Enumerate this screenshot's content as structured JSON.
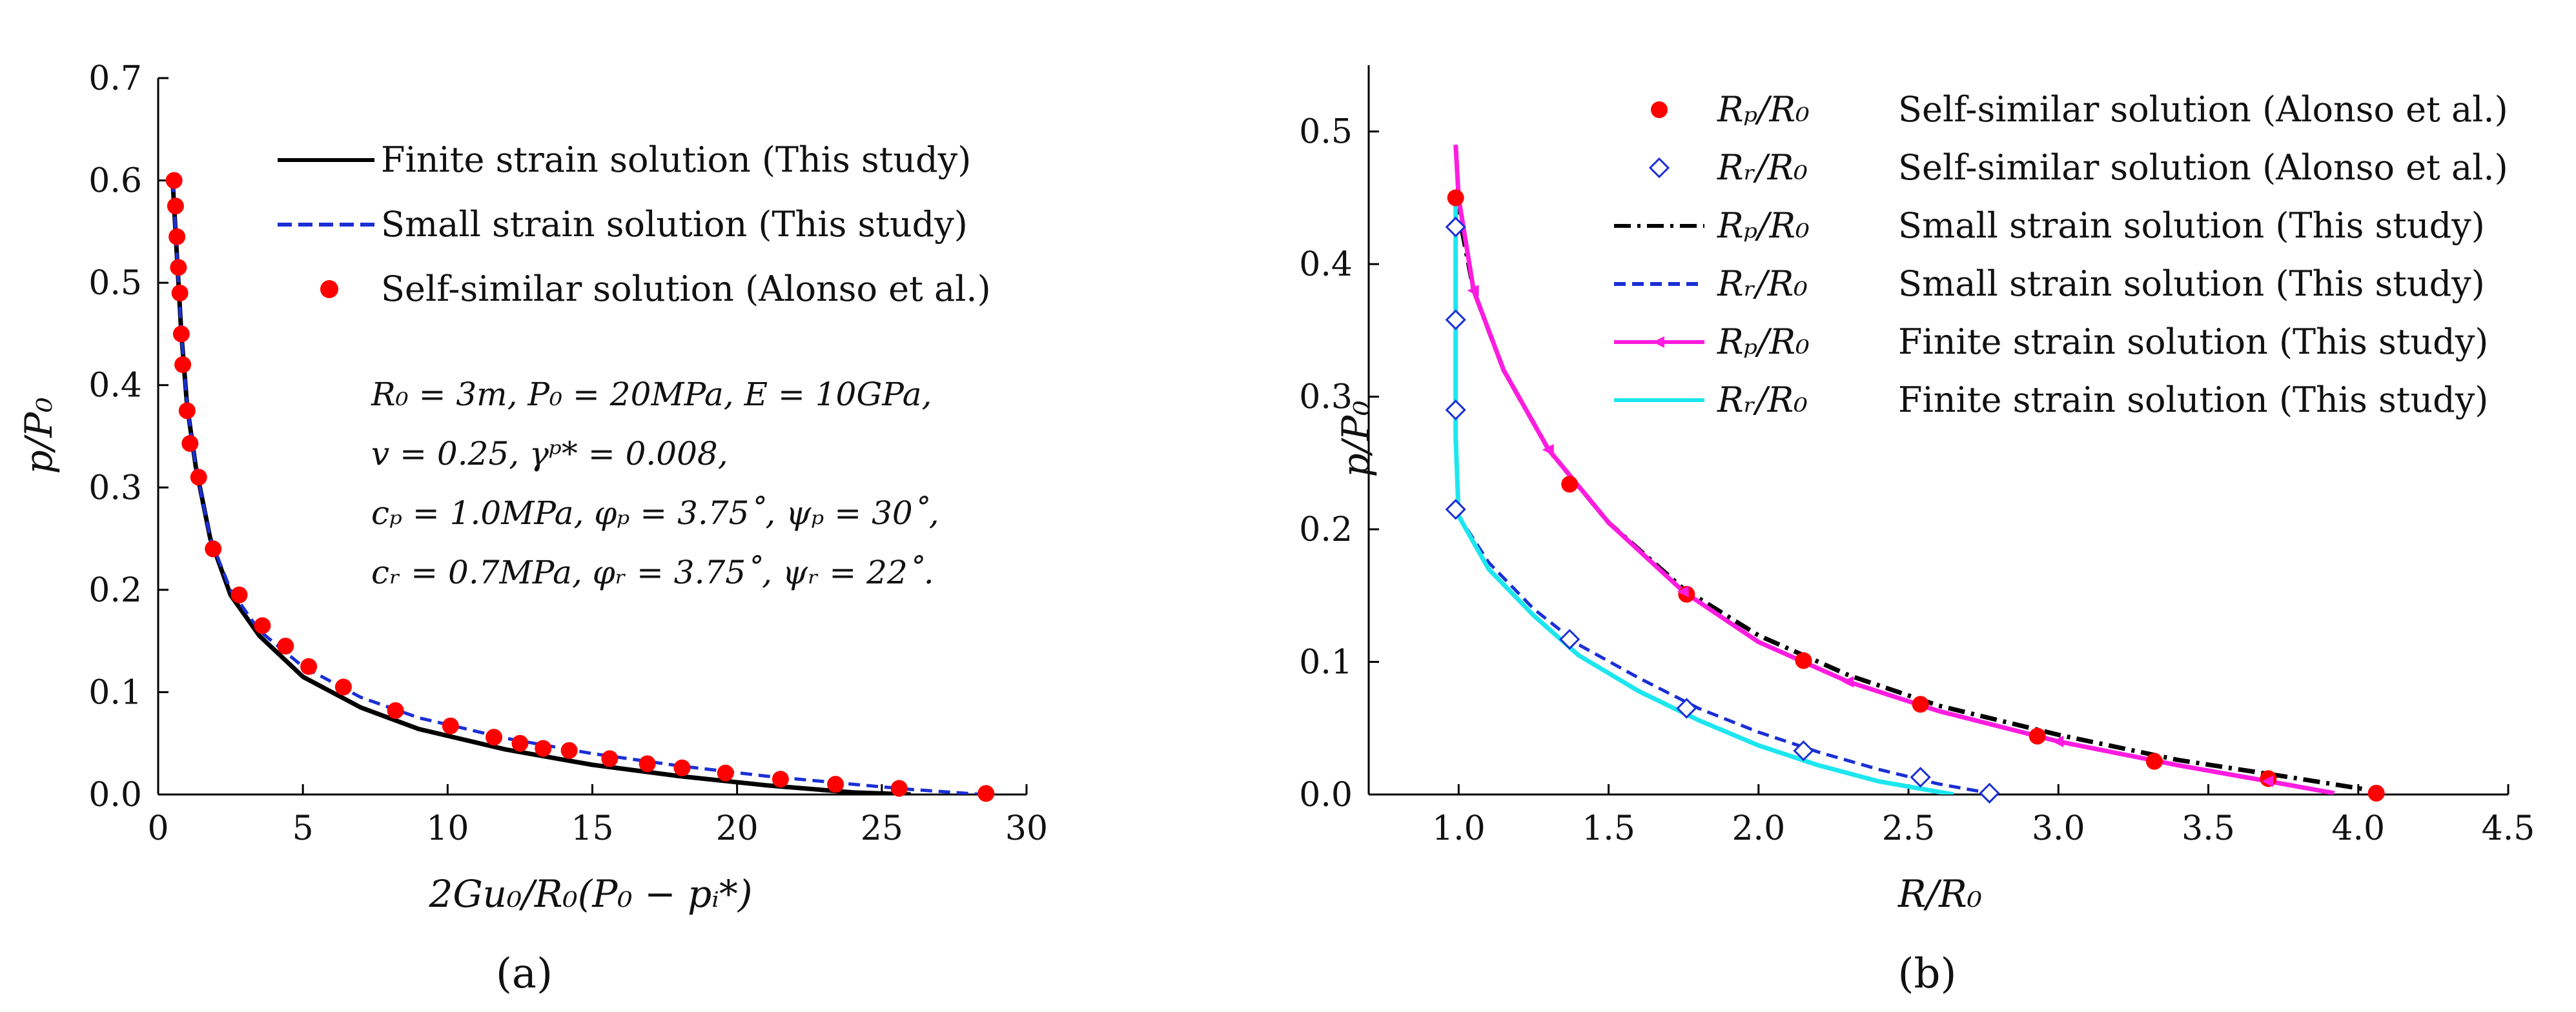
{
  "chart_data": [
    {
      "type": "line",
      "panel": "(a)",
      "xlabel": "2Gu₀/R₀(P₀ − pᵢ*)",
      "ylabel": "p/P₀",
      "xlim": [
        0,
        30
      ],
      "ylim": [
        0,
        0.7
      ],
      "xticks": [
        0,
        5,
        10,
        15,
        20,
        25,
        30
      ],
      "yticks": [
        0.0,
        0.1,
        0.2,
        0.3,
        0.4,
        0.5,
        0.6,
        0.7
      ],
      "xtick_labels": [
        "0",
        "5",
        "10",
        "15",
        "20",
        "25",
        "30"
      ],
      "ytick_labels": [
        "0.0",
        "0.1",
        "0.2",
        "0.3",
        "0.4",
        "0.5",
        "0.6",
        "0.7"
      ],
      "legend_position": "top-right",
      "series": [
        {
          "name": "Finite strain solution (This study)",
          "style": "solid",
          "color": "#000000",
          "x": [
            0.5,
            0.6,
            0.7,
            0.8,
            1.0,
            1.3,
            1.8,
            2.5,
            3.5,
            5,
            7,
            9,
            12,
            15,
            18,
            21,
            24,
            26
          ],
          "y": [
            0.6,
            0.55,
            0.5,
            0.45,
            0.38,
            0.32,
            0.25,
            0.195,
            0.155,
            0.115,
            0.085,
            0.064,
            0.044,
            0.029,
            0.018,
            0.009,
            0.002,
            0.0
          ]
        },
        {
          "name": "Small strain solution (This study)",
          "style": "dashed",
          "color": "#1a2fd6",
          "x": [
            0.5,
            0.6,
            0.7,
            0.8,
            1.0,
            1.3,
            1.8,
            2.5,
            3.5,
            5,
            7,
            9,
            12,
            15,
            18,
            21,
            24,
            26,
            28.5
          ],
          "y": [
            0.6,
            0.55,
            0.5,
            0.45,
            0.38,
            0.32,
            0.25,
            0.2,
            0.16,
            0.125,
            0.095,
            0.075,
            0.055,
            0.04,
            0.028,
            0.018,
            0.01,
            0.005,
            0.0
          ]
        },
        {
          "name": "Self-similar solution (Alonso et al.)",
          "style": "marker",
          "color": "#ff0000",
          "x": [
            0.55,
            0.6,
            0.65,
            0.7,
            0.75,
            0.8,
            0.85,
            1.0,
            1.1,
            1.4,
            1.9,
            2.8,
            3.6,
            4.4,
            5.2,
            6.4,
            8.2,
            10.1,
            11.6,
            12.5,
            13.3,
            14.2,
            15.6,
            16.9,
            18.1,
            19.6,
            21.5,
            23.4,
            25.6,
            28.6
          ],
          "y": [
            0.6,
            0.575,
            0.545,
            0.515,
            0.49,
            0.45,
            0.42,
            0.375,
            0.343,
            0.31,
            0.24,
            0.195,
            0.165,
            0.145,
            0.125,
            0.105,
            0.082,
            0.067,
            0.056,
            0.05,
            0.045,
            0.043,
            0.035,
            0.03,
            0.026,
            0.021,
            0.015,
            0.01,
            0.006,
            0.001
          ]
        }
      ],
      "annotation_lines": [
        "R₀ = 3m, P₀ = 20MPa, E = 10GPa,",
        "v = 0.25, γᵖ* = 0.008,",
        "cₚ = 1.0MPa, φₚ = 3.75˚, ψₚ = 30˚,",
        "cᵣ = 0.7MPa, φᵣ = 3.75˚, ψᵣ = 22˚."
      ]
    },
    {
      "type": "line",
      "panel": "(b)",
      "xlabel": "R/R₀",
      "ylabel": "p/P₀",
      "xlim": [
        0.7,
        4.5
      ],
      "ylim": [
        0,
        0.55
      ],
      "xticks": [
        1.0,
        1.5,
        2.0,
        2.5,
        3.0,
        3.5,
        4.0,
        4.5
      ],
      "yticks": [
        0.0,
        0.1,
        0.2,
        0.3,
        0.4,
        0.5
      ],
      "xtick_labels": [
        "1.0",
        "1.5",
        "2.0",
        "2.5",
        "3.0",
        "3.5",
        "4.0",
        "4.5"
      ],
      "ytick_labels": [
        "0.0",
        "0.1",
        "0.2",
        "0.3",
        "0.4",
        "0.5"
      ],
      "legend_position": "top-right",
      "series": [
        {
          "name": "Self-similar solution (Alonso et al.)",
          "symbol": "Rₚ/R₀",
          "style": "marker-circle",
          "color": "#ff0000",
          "x": [
            0.99,
            1.37,
            1.76,
            2.15,
            2.54,
            2.93,
            3.32,
            3.7,
            4.06
          ],
          "y": [
            0.45,
            0.234,
            0.151,
            0.101,
            0.068,
            0.044,
            0.025,
            0.012,
            0.001
          ]
        },
        {
          "name": "Self-similar solution (Alonso et al.)",
          "symbol": "Rᵣ/R₀",
          "style": "marker-diamond",
          "color": "#1a2fd6",
          "x": [
            0.99,
            0.99,
            0.99,
            0.99,
            1.37,
            1.76,
            2.15,
            2.54,
            2.77
          ],
          "y": [
            0.428,
            0.358,
            0.29,
            0.215,
            0.117,
            0.065,
            0.033,
            0.013,
            0.001
          ]
        },
        {
          "name": "Small strain solution (This study)",
          "symbol": "Rₚ/R₀",
          "style": "dash-dot",
          "color": "#000000",
          "x": [
            0.99,
            1.05,
            1.15,
            1.3,
            1.5,
            1.75,
            2.0,
            2.3,
            2.6,
            3.0,
            3.4,
            3.8,
            4.02
          ],
          "y": [
            0.45,
            0.38,
            0.32,
            0.26,
            0.205,
            0.155,
            0.12,
            0.09,
            0.067,
            0.045,
            0.026,
            0.012,
            0.004
          ]
        },
        {
          "name": "Small strain solution (This study)",
          "symbol": "Rᵣ/R₀",
          "style": "dashed",
          "color": "#1a2fd6",
          "x": [
            0.99,
            0.99,
            0.99,
            1.0,
            1.1,
            1.25,
            1.4,
            1.6,
            1.8,
            2.0,
            2.2,
            2.4,
            2.6,
            2.77
          ],
          "y": [
            0.43,
            0.35,
            0.28,
            0.21,
            0.175,
            0.14,
            0.113,
            0.088,
            0.065,
            0.047,
            0.032,
            0.019,
            0.008,
            0.001
          ]
        },
        {
          "name": "Finite strain solution (This study)",
          "symbol": "Rₚ/R₀",
          "style": "solid-arrow",
          "color": "#ff1ce0",
          "x": [
            0.99,
            1.0,
            1.05,
            1.15,
            1.3,
            1.5,
            1.75,
            2.0,
            2.3,
            2.6,
            3.0,
            3.4,
            3.7,
            3.92
          ],
          "y": [
            0.49,
            0.45,
            0.38,
            0.32,
            0.26,
            0.205,
            0.153,
            0.115,
            0.085,
            0.063,
            0.04,
            0.022,
            0.01,
            0.001
          ]
        },
        {
          "name": "Finite strain solution (This study)",
          "symbol": "Rᵣ/R₀",
          "style": "solid",
          "color": "#1de6ef",
          "x": [
            0.99,
            0.99,
            0.99,
            1.0,
            1.1,
            1.25,
            1.4,
            1.6,
            1.8,
            2.0,
            2.2,
            2.4,
            2.55,
            2.65
          ],
          "y": [
            0.45,
            0.35,
            0.27,
            0.21,
            0.17,
            0.135,
            0.105,
            0.078,
            0.056,
            0.037,
            0.022,
            0.01,
            0.004,
            0.0
          ]
        }
      ]
    }
  ]
}
